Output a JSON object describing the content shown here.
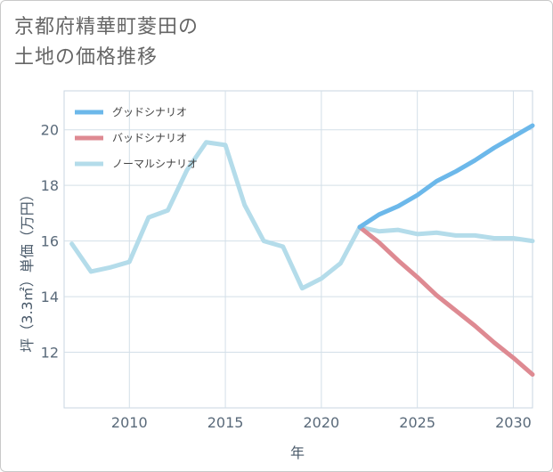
{
  "title_line1": "京都府精華町菱田の",
  "title_line2": "土地の価格推移",
  "chart_data": {
    "type": "line",
    "xlabel": "年",
    "ylabel": "坪（3.3㎡）単価（万円）",
    "xlim": [
      2006.6,
      2031.0
    ],
    "ylim": [
      10.0,
      21.4
    ],
    "xticks": [
      2010,
      2015,
      2020,
      2025,
      2030
    ],
    "yticks": [
      12,
      14,
      16,
      18,
      20
    ],
    "grid": true,
    "legend_position": "top-left",
    "series": [
      {
        "name": "グッドシナリオ",
        "color": "#6cb8ea",
        "x": [
          2022,
          2023,
          2024,
          2025,
          2026,
          2027,
          2028,
          2029,
          2030,
          2031
        ],
        "y": [
          16.5,
          16.95,
          17.25,
          17.65,
          18.15,
          18.5,
          18.9,
          19.35,
          19.75,
          20.15
        ]
      },
      {
        "name": "バッドシナリオ",
        "color": "#de8a92",
        "x": [
          2022,
          2023,
          2024,
          2025,
          2026,
          2027,
          2028,
          2029,
          2030,
          2031
        ],
        "y": [
          16.5,
          15.95,
          15.3,
          14.7,
          14.05,
          13.5,
          12.95,
          12.35,
          11.8,
          11.2
        ]
      },
      {
        "name": "ノーマルシナリオ",
        "color": "#b4dcea",
        "x": [
          2007,
          2008,
          2009,
          2010,
          2011,
          2012,
          2013,
          2014,
          2015,
          2016,
          2017,
          2018,
          2019,
          2020,
          2021,
          2022,
          2023,
          2024,
          2025,
          2026,
          2027,
          2028,
          2029,
          2030,
          2031
        ],
        "y": [
          15.9,
          14.9,
          15.05,
          15.25,
          16.85,
          17.1,
          18.55,
          19.55,
          19.45,
          17.3,
          16.0,
          15.8,
          14.3,
          14.65,
          15.2,
          16.5,
          16.35,
          16.4,
          16.25,
          16.3,
          16.2,
          16.2,
          16.1,
          16.1,
          16.0
        ]
      }
    ]
  }
}
